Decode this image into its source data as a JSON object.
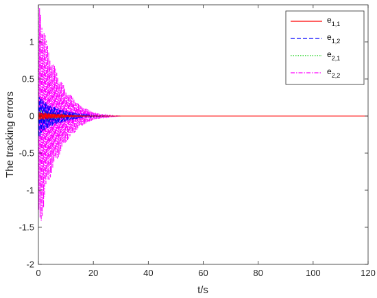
{
  "chart_data": {
    "type": "line",
    "title": "",
    "xlabel": "t/s",
    "ylabel": "The tracking errors",
    "xlim": [
      0,
      120
    ],
    "ylim": [
      -2,
      1.5
    ],
    "xticks": [
      0,
      20,
      40,
      60,
      80,
      100,
      120
    ],
    "xtick_labels": [
      "0",
      "20",
      "40",
      "60",
      "80",
      "100",
      "120"
    ],
    "yticks": [
      -2,
      -1.5,
      -1,
      -0.5,
      0,
      0.5,
      1
    ],
    "ytick_labels": [
      "-2",
      "-1.5",
      "-1",
      "-0.5",
      "0",
      "0.5",
      "1"
    ],
    "grid": false,
    "legend_position": "top-right",
    "series": [
      {
        "name": "e",
        "name_sub": "1,1",
        "color": "#ff0000",
        "line_style": "solid",
        "amplitude_peak": 0.05,
        "x": [
          0,
          2,
          5,
          10,
          15,
          20,
          30,
          120
        ],
        "y_envelope": [
          0.05,
          0.04,
          0.03,
          0.015,
          0.005,
          0,
          0,
          0
        ]
      },
      {
        "name": "e",
        "name_sub": "1,2",
        "color": "#0000ff",
        "line_style": "dashed",
        "amplitude_peak": 0.3,
        "x": [
          0,
          2,
          5,
          10,
          15,
          20,
          25,
          30,
          120
        ],
        "y_envelope": [
          0.3,
          0.2,
          0.13,
          0.07,
          0.03,
          0.01,
          0.003,
          0,
          0
        ]
      },
      {
        "name": "e",
        "name_sub": "2,1",
        "color": "#00cc00",
        "line_style": "dotted",
        "amplitude_peak": 0.1,
        "x": [
          0,
          2,
          5,
          10,
          15,
          20,
          30,
          120
        ],
        "y_envelope": [
          0.1,
          0.08,
          0.05,
          0.025,
          0.01,
          0.003,
          0,
          0
        ]
      },
      {
        "name": "e",
        "name_sub": "2,2",
        "color": "#ff00ff",
        "line_style": "dashdot",
        "amplitude_peak": 1.5,
        "x": [
          0,
          1,
          3,
          5,
          8,
          10,
          15,
          20,
          25,
          30,
          120
        ],
        "y_envelope": [
          1.5,
          1.45,
          1.0,
          0.75,
          0.5,
          0.36,
          0.15,
          0.05,
          0.015,
          0,
          0
        ]
      }
    ]
  }
}
